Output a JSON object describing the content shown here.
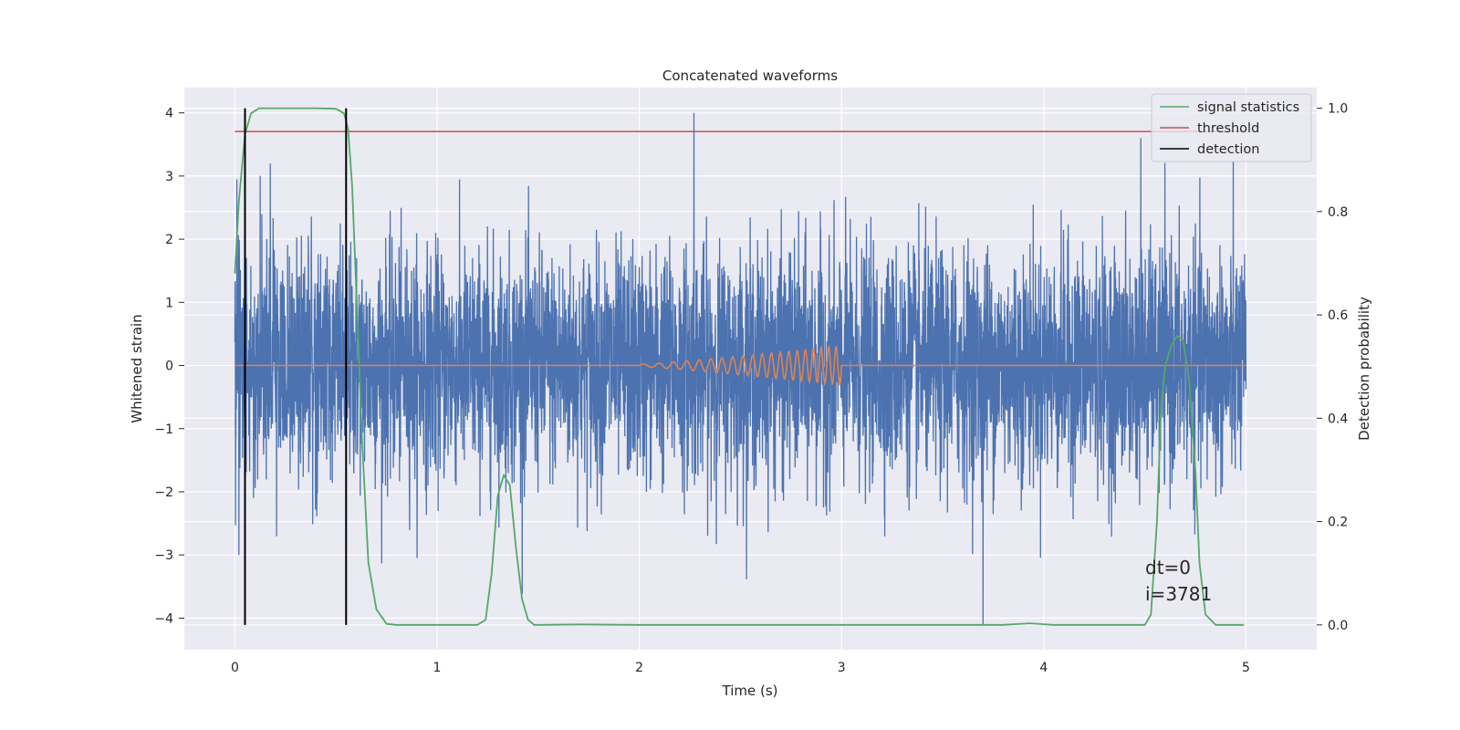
{
  "chart_data": {
    "type": "line",
    "title": "Concatenated waveforms",
    "xlabel": "Time (s)",
    "ylabel": "Whitened strain",
    "y2label": "Detection probability",
    "xlim": [
      -0.25,
      5.35
    ],
    "ylim": [
      -4.5,
      4.4
    ],
    "y2lim": [
      -0.048,
      1.04
    ],
    "xticks": [
      0,
      1,
      2,
      3,
      4,
      5
    ],
    "yticks": [
      -4,
      -3,
      -2,
      -1,
      0,
      1,
      2,
      3,
      4
    ],
    "y2ticks": [
      0.0,
      0.2,
      0.4,
      0.6,
      0.8,
      1.0
    ],
    "grid": true,
    "legend_position": "top-right",
    "legend": [
      {
        "label": "signal statistics",
        "color": "#55a868"
      },
      {
        "label": "threshold",
        "color": "#c44e52"
      },
      {
        "label": "detection",
        "color": "#000000"
      }
    ],
    "annotation": [
      "dt=0",
      "i=3781"
    ],
    "series": [
      {
        "color": "#4c72b0",
        "axis": "left",
        "description_kind": "noise",
        "x_range": [
          0,
          5
        ],
        "typical_amplitude": 0.9,
        "max": 4.0,
        "min": -4.1,
        "notable_peaks": [
          {
            "x": 2.27,
            "y": 4.0
          },
          {
            "x": 4.48,
            "y": 3.6
          },
          {
            "x": 3.7,
            "y": -4.1
          },
          {
            "x": 0.55,
            "y": 3.3
          },
          {
            "x": 0.01,
            "y": 2.95
          },
          {
            "x": 0.02,
            "y": -3.0
          }
        ]
      },
      {
        "color": "#dd8452",
        "axis": "left",
        "description_kind": "chirp",
        "x_range": [
          0,
          5
        ],
        "chirp_start": 2.0,
        "chirp_end": 3.0,
        "chirp_max_amplitude": 0.3
      },
      {
        "name": "signal statistics",
        "color": "#55a868",
        "axis": "right",
        "x": [
          0.0,
          0.02,
          0.05,
          0.08,
          0.12,
          0.2,
          0.3,
          0.4,
          0.5,
          0.54,
          0.56,
          0.58,
          0.6,
          0.63,
          0.66,
          0.7,
          0.75,
          0.8,
          1.0,
          1.2,
          1.24,
          1.27,
          1.3,
          1.33,
          1.36,
          1.39,
          1.42,
          1.45,
          1.48,
          1.5,
          1.7,
          2.0,
          3.0,
          3.8,
          3.93,
          4.05,
          4.3,
          4.5,
          4.53,
          4.56,
          4.58,
          4.6,
          4.63,
          4.66,
          4.69,
          4.72,
          4.75,
          4.77,
          4.8,
          4.85,
          4.99
        ],
        "y": [
          0.68,
          0.82,
          0.95,
          0.99,
          1.0,
          1.0,
          1.0,
          1.0,
          0.999,
          0.99,
          0.96,
          0.85,
          0.65,
          0.35,
          0.12,
          0.03,
          0.002,
          0.0,
          0.0,
          0.0,
          0.01,
          0.1,
          0.25,
          0.29,
          0.27,
          0.15,
          0.05,
          0.01,
          0.0,
          0.0,
          0.001,
          0.0,
          0.0,
          0.0,
          0.003,
          0.0,
          0.0,
          0.0,
          0.02,
          0.2,
          0.42,
          0.5,
          0.54,
          0.56,
          0.55,
          0.47,
          0.3,
          0.12,
          0.02,
          0.0,
          0.0
        ]
      },
      {
        "name": "threshold",
        "color": "#c44e52",
        "axis": "right",
        "x": [
          0,
          5
        ],
        "y": [
          0.955,
          0.955
        ]
      },
      {
        "name": "detection",
        "color": "#000000",
        "axis": "right",
        "type": "vlines",
        "x": [
          0.05,
          0.55
        ],
        "y": [
          0,
          1
        ]
      }
    ]
  }
}
